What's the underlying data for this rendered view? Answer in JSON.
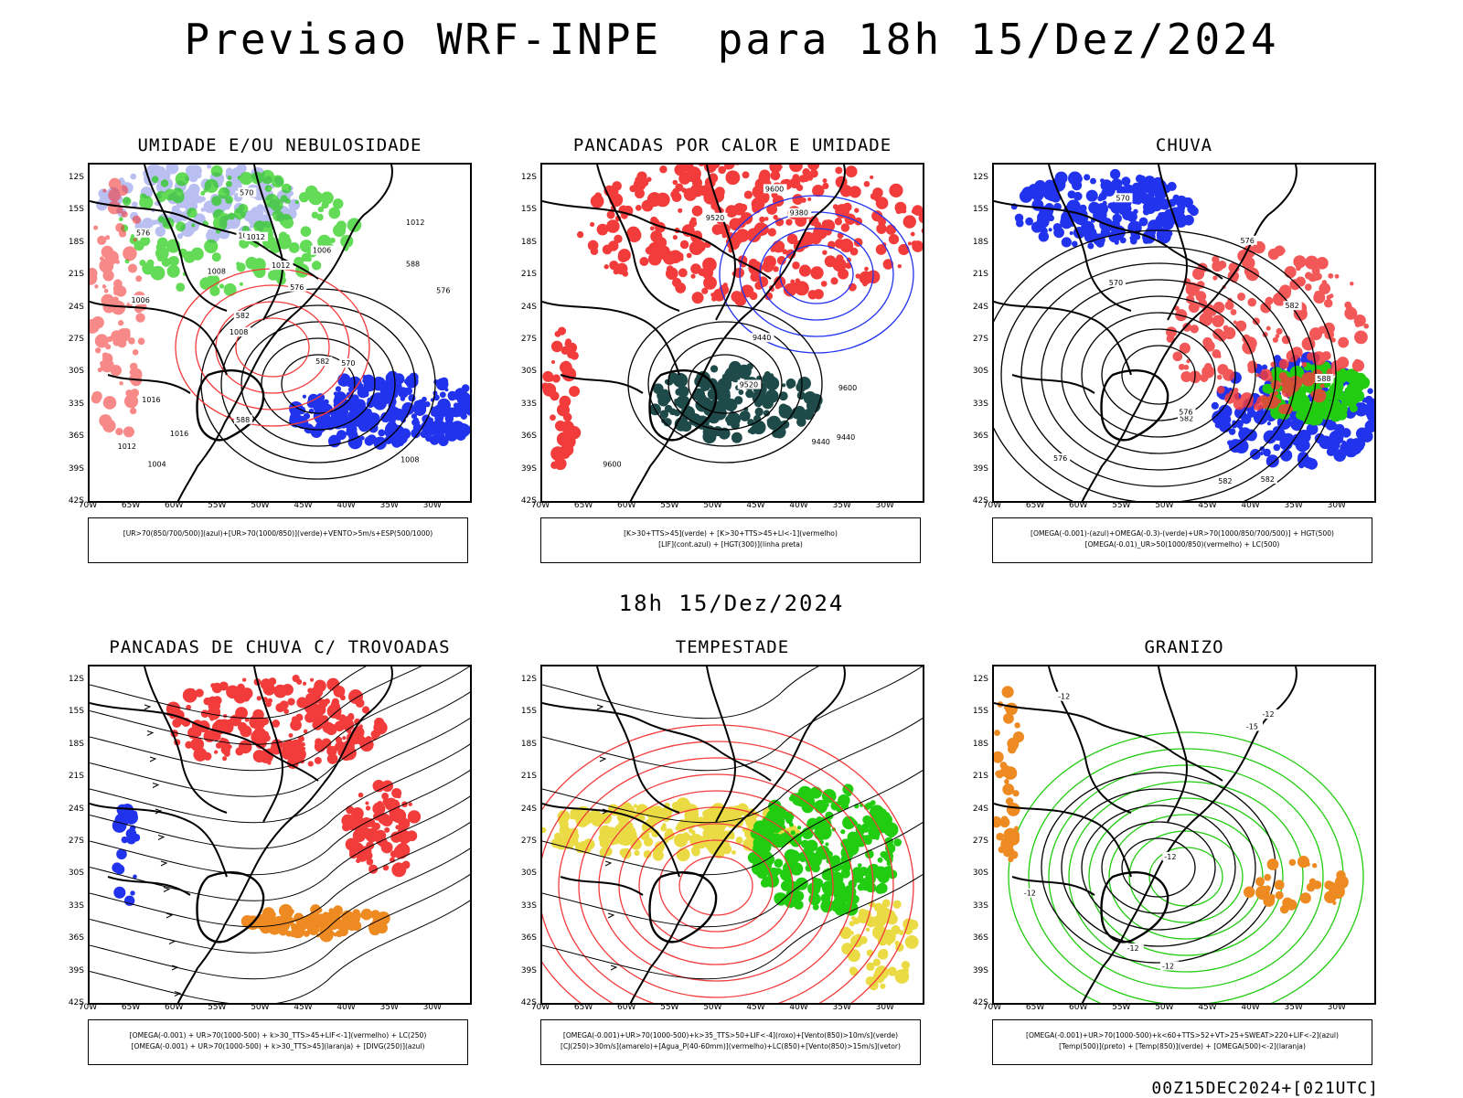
{
  "header": {
    "title": "Previsao WRF-INPE  para 18h 15/Dez/2024"
  },
  "middle_title": "18h 15/Dez/2024",
  "footer": "00Z15DEC2024+[021UTC]",
  "axes": {
    "lat_labels": [
      "12S",
      "15S",
      "18S",
      "21S",
      "24S",
      "27S",
      "30S",
      "33S",
      "36S",
      "39S",
      "42S"
    ],
    "lon_labels": [
      "70W",
      "65W",
      "60W",
      "55W",
      "50W",
      "45W",
      "40W",
      "35W",
      "30W"
    ]
  },
  "colors": {
    "red": "#f23c3c",
    "green": "#22cc11",
    "blue": "#2233ee",
    "lightblue": "#aab0ee",
    "teal": "#1f4a4a",
    "yellow": "#e8d830",
    "orange": "#ee8a22"
  },
  "panels": [
    {
      "id": "umidade",
      "title": "UMIDADE E/OU NEBULOSIDADE",
      "legend": [
        "[UR>70(850/700/500)](azul)+[UR>70(1000/850)](verde)+VENTO>5m/s+ESP(500/1000)"
      ],
      "contour_labels": [
        "1008",
        "1006",
        "1012",
        "1008",
        "1006",
        "1004",
        "1008",
        "1012",
        "1016",
        "1008",
        "1012",
        "1016",
        "1012",
        "576",
        "570",
        "576",
        "570",
        "576",
        "582",
        "588",
        "582",
        "588"
      ]
    },
    {
      "id": "pancadas",
      "title": "PANCADAS POR CALOR E UMIDADE",
      "legend": [
        "[K>30+TTS>45](verde) + [K>30+TTS>45+LI<-1](vermelho)",
        "[LIF](cont.azul) + [HGT(300)](linha preta)"
      ],
      "contour_labels": [
        "9600",
        "9600",
        "9440",
        "9520",
        "9520",
        "9600",
        "9440",
        "9380",
        "9440"
      ]
    },
    {
      "id": "chuva",
      "title": "CHUVA",
      "legend": [
        "[OMEGA(-0.001)-(azul)+OMEGA(-0.3)-(verde)+UR>70(1000/850/700/500)] + HGT(500)",
        "[OMEGA(-0.01)_UR>50(1000/850)(vermelho) + LC(500)"
      ],
      "contour_labels": [
        "588",
        "582",
        "582",
        "576",
        "576",
        "570",
        "570",
        "576",
        "582",
        "582"
      ]
    },
    {
      "id": "trovoadas",
      "title": "PANCADAS DE CHUVA C/ TROVOADAS",
      "legend": [
        "[OMEGA(-0.001) + UR>70(1000-500) + k>30_TTS>45+LIF<-1](vermelho) + LC(250)",
        "[OMEGA(-0.001) + UR>70(1000-500) + k>30_TTS>45](laranja) + [DIVG(250)](azul)"
      ]
    },
    {
      "id": "tempestade",
      "title": "TEMPESTADE",
      "legend": [
        "[OMEGA(-0.001)+UR>70(1000-500)+k>35_TTS>50+LIF<-4](roxo)+[Vento(850)>10m/s](verde)",
        "[CJ(250)>30m/s](amarelo)+[Agua_P(40-60mm)](vermelho)+LC(850)+[Vento(850)>15m/s](vetor)"
      ]
    },
    {
      "id": "granizo",
      "title": "GRANIZO",
      "legend": [
        "[OMEGA(-0.001)+UR>70(1000-500)+k<60+TTS>52+VT>25+SWEAT>220+LIF<-2](azul)",
        "[Temp(500)](preto) + [Temp(850)](verde) + [OMEGA(500)<-2](laranja)"
      ],
      "contour_labels": [
        "-12",
        "-12",
        "-12",
        "-12",
        "-12",
        "-12",
        "-15"
      ]
    }
  ]
}
